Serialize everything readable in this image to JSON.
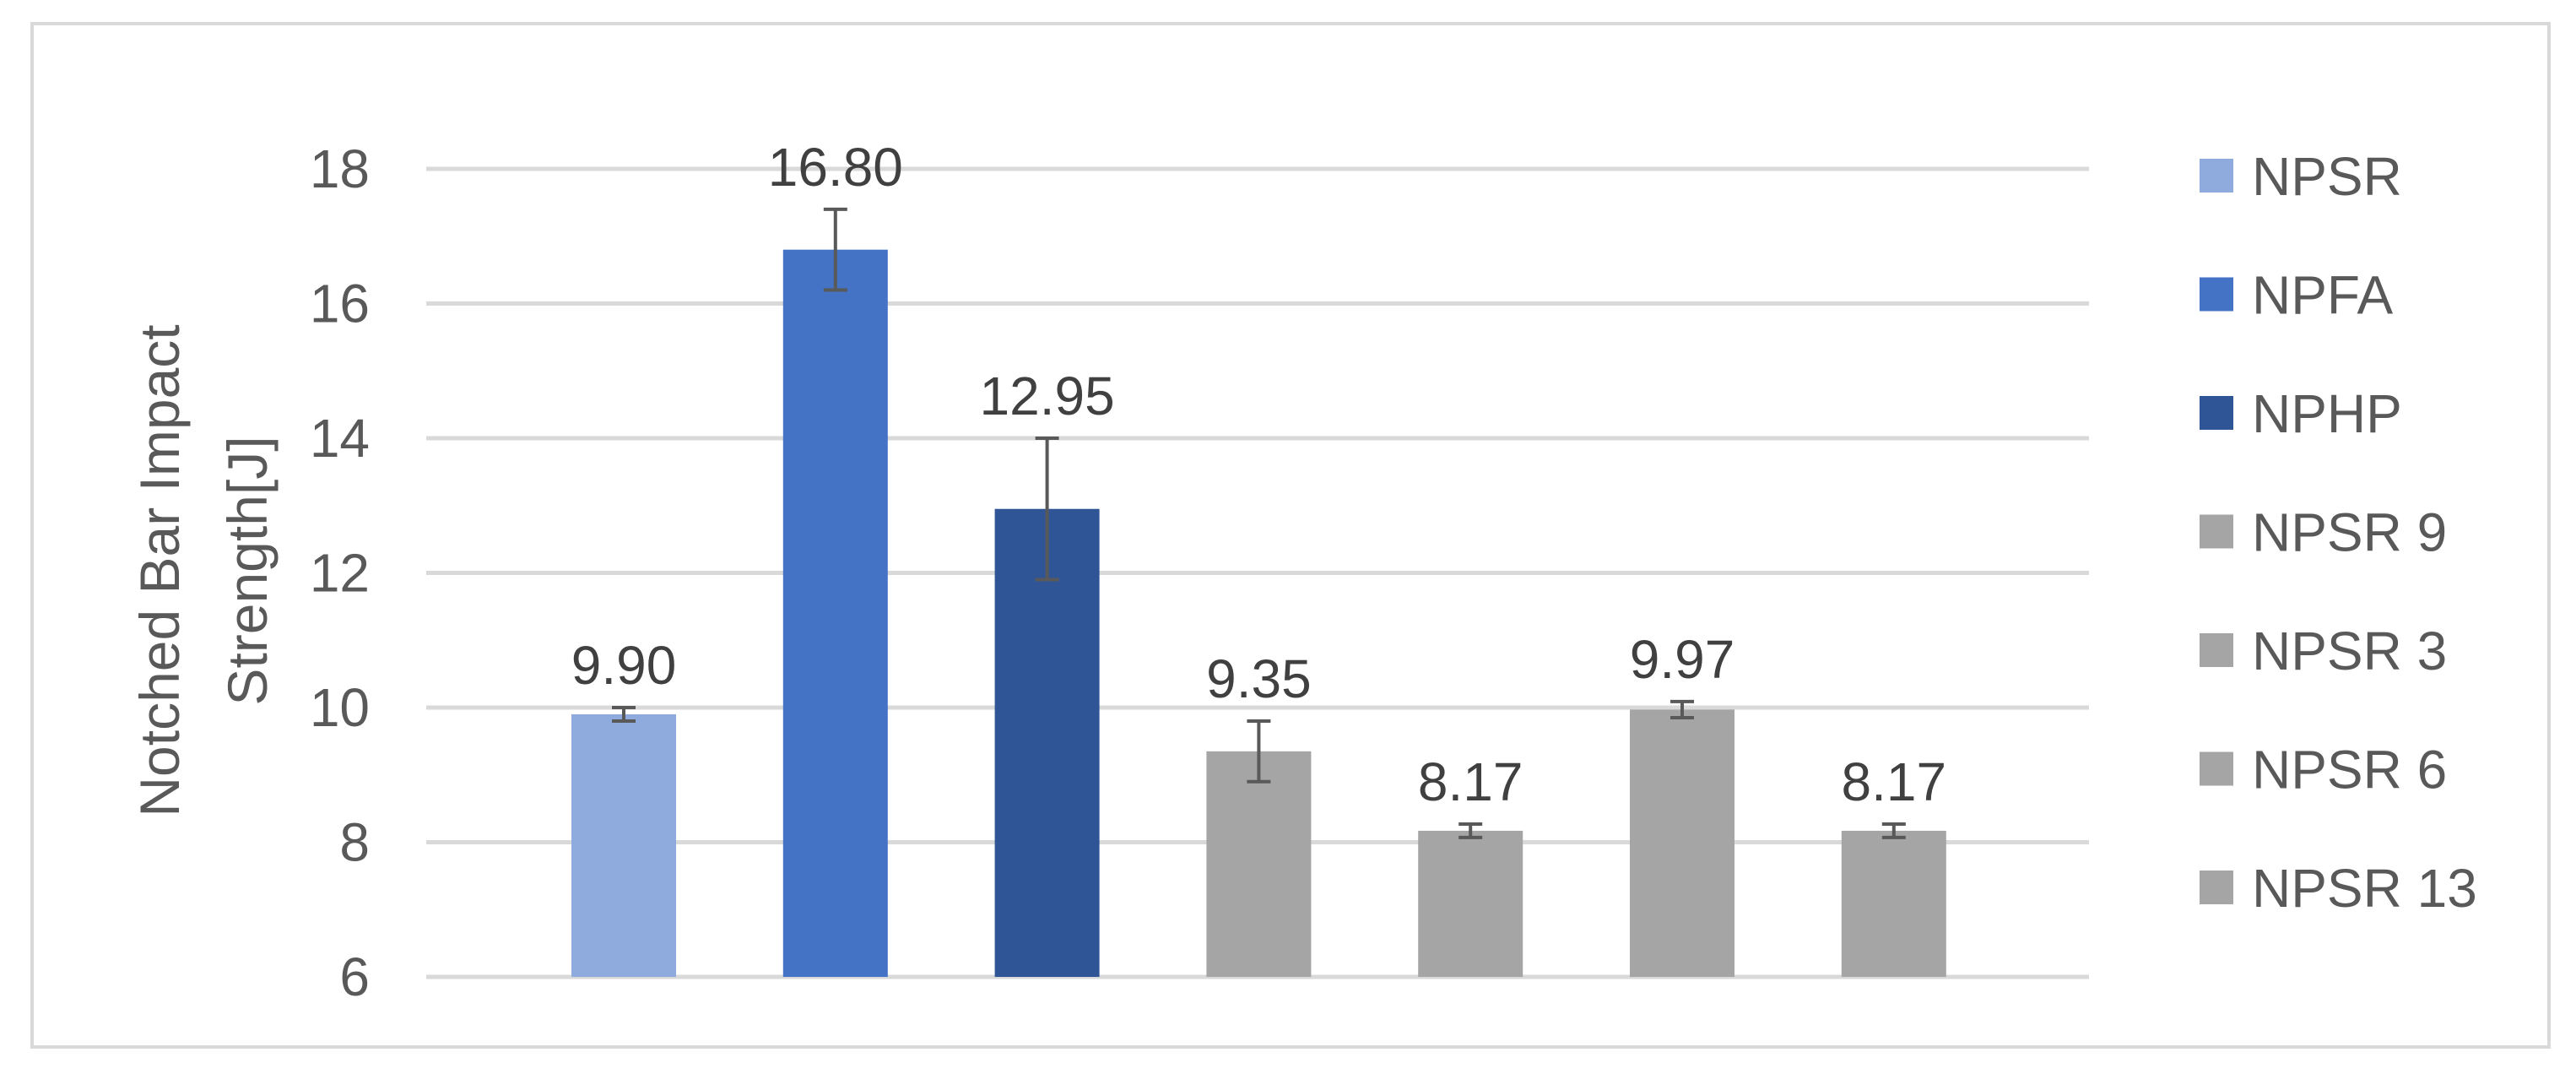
{
  "chart_data": {
    "type": "bar",
    "title": "",
    "xlabel": "",
    "ylabel": "Notched Bar Impact Strength[J]",
    "ylabel_lines": [
      "Notched Bar Impact",
      "Strength[J]"
    ],
    "ylim": [
      6,
      18
    ],
    "yticks": [
      6,
      8,
      10,
      12,
      14,
      16,
      18
    ],
    "grid": true,
    "legend_position": "right",
    "categories": [
      "NPSR",
      "NPFA",
      "NPHP",
      "NPSR 9",
      "NPSR 3",
      "NPSR 6",
      "NPSR 13"
    ],
    "values": [
      9.9,
      16.8,
      12.95,
      9.35,
      8.17,
      9.97,
      8.17
    ],
    "value_labels": [
      "9.90",
      "16.80",
      "12.95",
      "9.35",
      "8.17",
      "9.97",
      "8.17"
    ],
    "error": [
      0.1,
      0.6,
      1.05,
      0.45,
      0.1,
      0.12,
      0.1
    ],
    "colors": [
      "#8faadc",
      "#4472c4",
      "#2f5597",
      "#a5a5a5",
      "#a5a5a5",
      "#a5a5a5",
      "#a5a5a5"
    ],
    "gridline_color": "#d9d9d9",
    "errorbar_color": "#595959"
  }
}
